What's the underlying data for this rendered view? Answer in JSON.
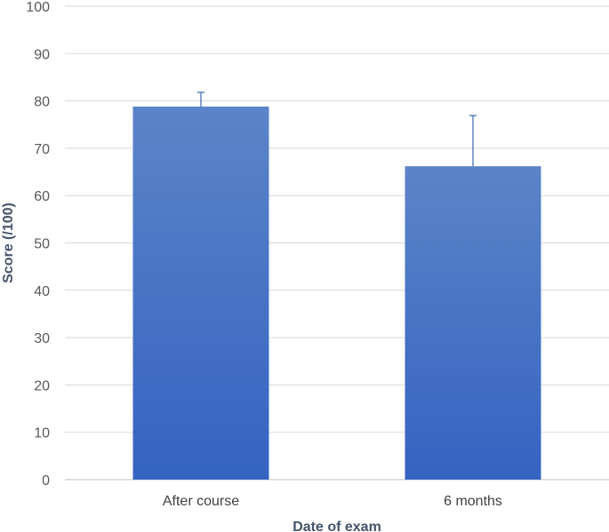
{
  "chart_data": {
    "type": "bar",
    "categories": [
      "After course",
      "6 months"
    ],
    "values": [
      78.8,
      66.2
    ],
    "error_upper": [
      81.8,
      76.9
    ],
    "xlabel": "Date of exam",
    "ylabel": "Score (/100)",
    "ylim": [
      0,
      100
    ],
    "yticks": [
      0,
      10,
      20,
      30,
      40,
      50,
      60,
      70,
      80,
      90,
      100
    ],
    "grid": true,
    "legend": "none",
    "colors": {
      "bar_top": "#5b84c8",
      "bar_bottom": "#3563c1",
      "error_bar": "#4a6fb5"
    }
  }
}
